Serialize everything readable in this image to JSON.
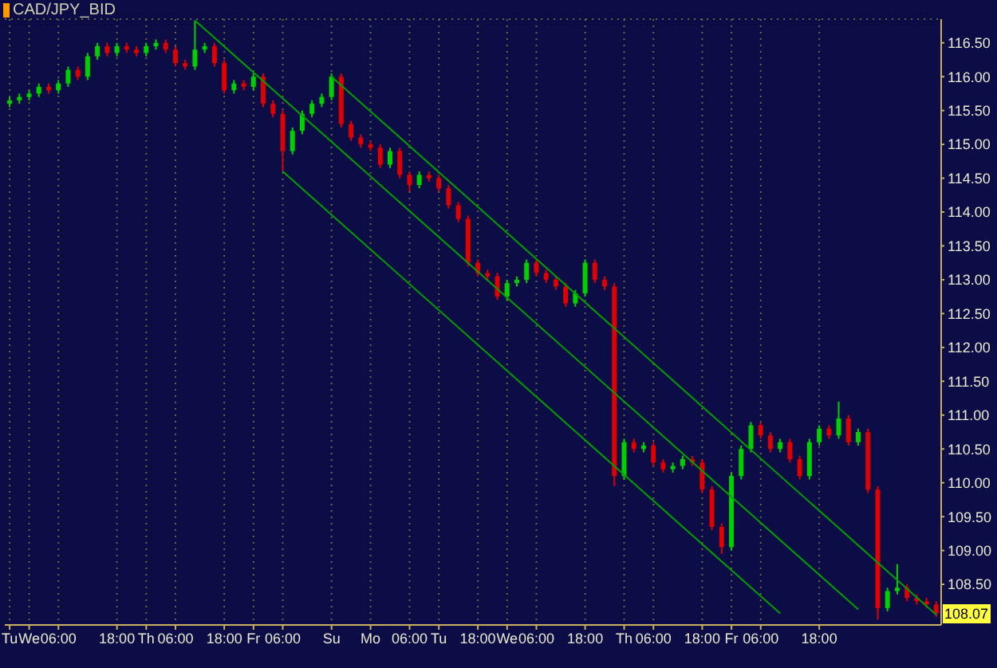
{
  "chart_data": {
    "type": "candlestick",
    "title": "CAD/JPY_BID",
    "categories": [
      "Tu",
      null,
      "We",
      null,
      null,
      "06:00",
      null,
      null,
      null,
      null,
      null,
      "18:00",
      null,
      null,
      "Th",
      null,
      null,
      "06:00",
      null,
      null,
      null,
      null,
      "18:00",
      null,
      null,
      "Fr",
      null,
      null,
      "06:00",
      null,
      null,
      null,
      null,
      "Su",
      null,
      null,
      null,
      "Mo",
      null,
      null,
      null,
      "06:00",
      null,
      null,
      "Tu",
      null,
      null,
      null,
      "18:00",
      null,
      null,
      "We",
      null,
      null,
      "06:00",
      null,
      null,
      null,
      null,
      "18:00",
      null,
      null,
      null,
      "Th",
      null,
      null,
      "06:00",
      null,
      null,
      null,
      null,
      "18:00",
      null,
      null,
      "Fr",
      null,
      null,
      "06:00",
      null,
      null,
      null,
      null,
      null,
      "18:00",
      null,
      null,
      null,
      null,
      null,
      null,
      null,
      null,
      null,
      null,
      null,
      null
    ],
    "series": [
      {
        "type": "candlestick",
        "ohlc": [
          [
            115.6,
            115.7,
            115.55,
            115.65
          ],
          [
            115.65,
            115.75,
            115.6,
            115.7
          ],
          [
            115.7,
            115.8,
            115.65,
            115.75
          ],
          [
            115.75,
            115.9,
            115.7,
            115.85
          ],
          [
            115.85,
            115.9,
            115.75,
            115.8
          ],
          [
            115.8,
            115.95,
            115.75,
            115.9
          ],
          [
            115.9,
            116.15,
            115.85,
            116.1
          ],
          [
            116.1,
            116.15,
            115.95,
            116.0
          ],
          [
            116.0,
            116.35,
            115.95,
            116.3
          ],
          [
            116.3,
            116.5,
            116.25,
            116.45
          ],
          [
            116.45,
            116.5,
            116.3,
            116.35
          ],
          [
            116.35,
            116.5,
            116.3,
            116.45
          ],
          [
            116.45,
            116.5,
            116.35,
            116.4
          ],
          [
            116.4,
            116.45,
            116.3,
            116.35
          ],
          [
            116.35,
            116.5,
            116.3,
            116.45
          ],
          [
            116.45,
            116.55,
            116.4,
            116.5
          ],
          [
            116.5,
            116.55,
            116.35,
            116.4
          ],
          [
            116.4,
            116.45,
            116.15,
            116.2
          ],
          [
            116.2,
            116.25,
            116.1,
            116.15
          ],
          [
            116.15,
            116.83,
            116.1,
            116.4
          ],
          [
            116.4,
            116.5,
            116.35,
            116.45
          ],
          [
            116.45,
            116.5,
            116.15,
            116.2
          ],
          [
            116.2,
            116.25,
            115.75,
            115.8
          ],
          [
            115.8,
            115.95,
            115.75,
            115.9
          ],
          [
            115.9,
            115.95,
            115.8,
            115.85
          ],
          [
            115.85,
            116.05,
            115.8,
            116.0
          ],
          [
            116.0,
            116.05,
            115.55,
            115.6
          ],
          [
            115.6,
            115.65,
            115.4,
            115.45
          ],
          [
            115.45,
            115.5,
            114.6,
            114.9
          ],
          [
            114.9,
            115.25,
            114.85,
            115.2
          ],
          [
            115.2,
            115.5,
            115.15,
            115.45
          ],
          [
            115.45,
            115.65,
            115.4,
            115.6
          ],
          [
            115.6,
            115.75,
            115.55,
            115.7
          ],
          [
            115.7,
            116.05,
            115.65,
            116.0
          ],
          [
            116.0,
            116.05,
            115.25,
            115.3
          ],
          [
            115.3,
            115.35,
            115.05,
            115.1
          ],
          [
            115.1,
            115.15,
            114.95,
            115.0
          ],
          [
            115.0,
            115.05,
            114.9,
            114.95
          ],
          [
            114.95,
            115.0,
            114.65,
            114.7
          ],
          [
            114.7,
            114.95,
            114.65,
            114.9
          ],
          [
            114.9,
            114.95,
            114.5,
            114.55
          ],
          [
            114.55,
            114.6,
            114.3,
            114.4
          ],
          [
            114.4,
            114.6,
            114.35,
            114.55
          ],
          [
            114.55,
            114.6,
            114.45,
            114.5
          ],
          [
            114.5,
            114.55,
            114.3,
            114.35
          ],
          [
            114.35,
            114.4,
            114.05,
            114.1
          ],
          [
            114.1,
            114.15,
            113.85,
            113.9
          ],
          [
            113.9,
            113.95,
            113.2,
            113.25
          ],
          [
            113.25,
            113.3,
            113.05,
            113.1
          ],
          [
            113.1,
            113.15,
            113.0,
            113.05
          ],
          [
            113.05,
            113.1,
            112.7,
            112.75
          ],
          [
            112.75,
            113.0,
            112.7,
            112.95
          ],
          [
            112.95,
            113.05,
            112.9,
            113.0
          ],
          [
            113.0,
            113.3,
            112.95,
            113.25
          ],
          [
            113.25,
            113.3,
            113.05,
            113.1
          ],
          [
            113.1,
            113.15,
            112.95,
            113.0
          ],
          [
            113.0,
            113.05,
            112.85,
            112.9
          ],
          [
            112.9,
            112.95,
            112.6,
            112.65
          ],
          [
            112.65,
            112.85,
            112.6,
            112.8
          ],
          [
            112.8,
            113.3,
            112.75,
            113.25
          ],
          [
            113.25,
            113.3,
            112.95,
            113.0
          ],
          [
            113.0,
            113.05,
            112.85,
            112.9
          ],
          [
            112.9,
            112.95,
            109.95,
            110.1
          ],
          [
            110.1,
            110.65,
            110.05,
            110.6
          ],
          [
            110.6,
            110.65,
            110.45,
            110.5
          ],
          [
            110.5,
            110.6,
            110.45,
            110.55
          ],
          [
            110.55,
            110.6,
            110.25,
            110.3
          ],
          [
            110.3,
            110.35,
            110.15,
            110.2
          ],
          [
            110.2,
            110.3,
            110.15,
            110.25
          ],
          [
            110.25,
            110.4,
            110.2,
            110.35
          ],
          [
            110.35,
            110.4,
            110.25,
            110.3
          ],
          [
            110.3,
            110.35,
            109.85,
            109.9
          ],
          [
            109.9,
            109.95,
            109.3,
            109.35
          ],
          [
            109.35,
            109.4,
            108.95,
            109.05
          ],
          [
            109.05,
            110.15,
            109.0,
            110.1
          ],
          [
            110.1,
            110.55,
            110.05,
            110.5
          ],
          [
            110.5,
            110.9,
            110.45,
            110.85
          ],
          [
            110.85,
            110.9,
            110.65,
            110.7
          ],
          [
            110.7,
            110.75,
            110.45,
            110.5
          ],
          [
            110.5,
            110.65,
            110.45,
            110.6
          ],
          [
            110.6,
            110.65,
            110.3,
            110.35
          ],
          [
            110.35,
            110.4,
            110.05,
            110.1
          ],
          [
            110.1,
            110.65,
            110.05,
            110.6
          ],
          [
            110.6,
            110.85,
            110.55,
            110.8
          ],
          [
            110.8,
            110.85,
            110.65,
            110.7
          ],
          [
            110.7,
            111.2,
            110.65,
            110.95
          ],
          [
            110.95,
            111.0,
            110.55,
            110.6
          ],
          [
            110.6,
            110.8,
            110.55,
            110.75
          ],
          [
            110.75,
            110.8,
            109.85,
            109.9
          ],
          [
            109.9,
            109.95,
            107.98,
            108.15
          ],
          [
            108.15,
            108.45,
            108.1,
            108.4
          ],
          [
            108.4,
            108.8,
            108.35,
            108.45
          ],
          [
            108.45,
            108.5,
            108.25,
            108.3
          ],
          [
            108.3,
            108.35,
            108.2,
            108.25
          ],
          [
            108.25,
            108.3,
            108.15,
            108.2
          ],
          [
            108.2,
            108.25,
            108.02,
            108.07
          ]
        ],
        "colors": [
          "#00d000",
          "#00d000",
          "#00d000",
          "#00d000",
          "#e00000",
          "#00d000",
          "#00d000",
          "#e00000",
          "#00d000",
          "#00d000",
          "#e00000",
          "#00d000",
          "#e00000",
          "#e00000",
          "#00d000",
          "#00d000",
          "#e00000",
          "#e00000",
          "#e00000",
          "#00d000",
          "#00d000",
          "#e00000",
          "#e00000",
          "#00d000",
          "#e00000",
          "#00d000",
          "#e00000",
          "#e00000",
          "#e00000",
          "#00d000",
          "#00d000",
          "#00d000",
          "#00d000",
          "#00d000",
          "#e00000",
          "#e00000",
          "#e00000",
          "#e00000",
          "#e00000",
          "#00d000",
          "#e00000",
          "#e00000",
          "#00d000",
          "#e00000",
          "#e00000",
          "#e00000",
          "#e00000",
          "#e00000",
          "#e00000",
          "#e00000",
          "#e00000",
          "#00d000",
          "#00d000",
          "#00d000",
          "#e00000",
          "#e00000",
          "#e00000",
          "#e00000",
          "#00d000",
          "#00d000",
          "#e00000",
          "#e00000",
          "#e00000",
          "#00d000",
          "#e00000",
          "#00d000",
          "#e00000",
          "#e00000",
          "#00d000",
          "#00d000",
          "#e00000",
          "#e00000",
          "#e00000",
          "#e00000",
          "#00d000",
          "#00d000",
          "#00d000",
          "#e00000",
          "#e00000",
          "#00d000",
          "#e00000",
          "#e00000",
          "#00d000",
          "#00d000",
          "#e00000",
          "#00d000",
          "#e00000",
          "#00d000",
          "#e00000",
          "#e00000",
          "#00d000",
          "#00d000",
          "#e00000",
          "#e00000",
          "#e00000",
          "#e00000"
        ]
      },
      {
        "type": "line",
        "color": "#00a000",
        "values": [
          null,
          null,
          null,
          null,
          null,
          null,
          null,
          null,
          null,
          null,
          null,
          null,
          null,
          null,
          null,
          null,
          null,
          null,
          null,
          116.83,
          null,
          null,
          null,
          null,
          null,
          null,
          null,
          null,
          null,
          null,
          null,
          null,
          null,
          null,
          null,
          null,
          null,
          null,
          null,
          null,
          null,
          null,
          null,
          null,
          null,
          null,
          null,
          null,
          null,
          null,
          null,
          null,
          null,
          null,
          null,
          null,
          null,
          null,
          null,
          null,
          null,
          null,
          null,
          null,
          null,
          null,
          null,
          null,
          null,
          null,
          null,
          null,
          null,
          null,
          null,
          null,
          null,
          null,
          null,
          null,
          null,
          null,
          null,
          null,
          null,
          null,
          null,
          108.13,
          null,
          null,
          null,
          null,
          null,
          null,
          null,
          null
        ]
      },
      {
        "type": "line",
        "color": "#00a000",
        "values": [
          null,
          null,
          null,
          null,
          null,
          null,
          null,
          null,
          null,
          null,
          null,
          null,
          null,
          null,
          null,
          null,
          null,
          null,
          null,
          null,
          null,
          null,
          null,
          null,
          null,
          null,
          null,
          null,
          null,
          null,
          null,
          null,
          null,
          116.0,
          null,
          null,
          null,
          null,
          null,
          null,
          null,
          null,
          null,
          null,
          null,
          null,
          null,
          null,
          null,
          null,
          null,
          null,
          null,
          null,
          null,
          null,
          null,
          null,
          null,
          null,
          null,
          null,
          null,
          null,
          null,
          null,
          null,
          null,
          null,
          null,
          null,
          null,
          null,
          null,
          null,
          null,
          null,
          null,
          null,
          null,
          null,
          null,
          null,
          null,
          null,
          null,
          null,
          null,
          null,
          null,
          null,
          null,
          null,
          null,
          null,
          108.05
        ]
      },
      {
        "type": "line",
        "color": "#00a000",
        "values": [
          null,
          null,
          null,
          null,
          null,
          null,
          null,
          null,
          null,
          null,
          null,
          null,
          null,
          null,
          null,
          null,
          null,
          null,
          null,
          null,
          null,
          null,
          null,
          null,
          null,
          null,
          null,
          null,
          114.6,
          null,
          null,
          null,
          null,
          null,
          null,
          null,
          null,
          null,
          null,
          null,
          null,
          null,
          null,
          null,
          null,
          null,
          null,
          null,
          null,
          null,
          null,
          null,
          null,
          null,
          null,
          null,
          null,
          null,
          null,
          null,
          null,
          null,
          null,
          null,
          null,
          null,
          null,
          null,
          null,
          null,
          null,
          null,
          null,
          null,
          null,
          null,
          null,
          null,
          null,
          108.07,
          null,
          null,
          null,
          null,
          null,
          null,
          null,
          null,
          null,
          null,
          null,
          null,
          null,
          null,
          null,
          null
        ]
      }
    ],
    "ylim": [
      107.9,
      116.85
    ],
    "yticks": [
      {
        "value": 108.5,
        "label": "108.50"
      },
      {
        "value": 109,
        "label": "109.00"
      },
      {
        "value": 109.5,
        "label": "109.50"
      },
      {
        "value": 110,
        "label": "110.00"
      },
      {
        "value": 110.5,
        "label": "110.50"
      },
      {
        "value": 111,
        "label": "111.00"
      },
      {
        "value": 111.5,
        "label": "111.50"
      },
      {
        "value": 112,
        "label": "112.00"
      },
      {
        "value": 112.5,
        "label": "112.50"
      },
      {
        "value": 113,
        "label": "113.00"
      },
      {
        "value": 113.5,
        "label": "113.50"
      },
      {
        "value": 114,
        "label": "114.00"
      },
      {
        "value": 114.5,
        "label": "114.50"
      },
      {
        "value": 115,
        "label": "115.00"
      },
      {
        "value": 115.5,
        "label": "115.50"
      },
      {
        "value": 116,
        "label": "116.00"
      },
      {
        "value": 116.5,
        "label": "116.50"
      }
    ],
    "grid": true,
    "annotations": [
      {
        "text": "108.07",
        "y": 108.07
      }
    ]
  }
}
